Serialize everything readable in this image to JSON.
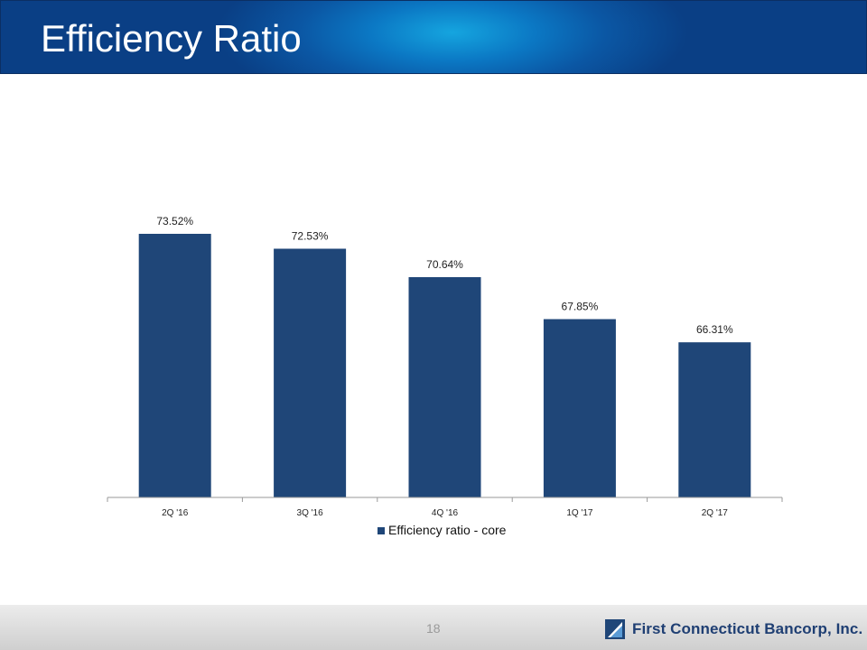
{
  "slide": {
    "title": "Efficiency Ratio",
    "page_number": "18",
    "logo_text": "First Connecticut Bancorp, Inc."
  },
  "colors": {
    "bar": "#1f4678",
    "header_dark": "#0a3f85",
    "header_light": "#15a5df",
    "logo_text": "#1f3f73"
  },
  "icons": {
    "logo": "bank-logo-icon"
  },
  "chart_data": {
    "type": "bar",
    "categories": [
      "2Q '16",
      "3Q '16",
      "4Q '16",
      "1Q '17",
      "2Q '17"
    ],
    "series": [
      {
        "name": "Efficiency ratio - core",
        "values": [
          73.52,
          72.53,
          70.64,
          67.85,
          66.31
        ]
      }
    ],
    "data_labels": [
      "73.52%",
      "72.53%",
      "70.64%",
      "67.85%",
      "66.31%"
    ],
    "ylim": [
      56,
      75
    ],
    "grid": false,
    "legend": "bottom"
  }
}
